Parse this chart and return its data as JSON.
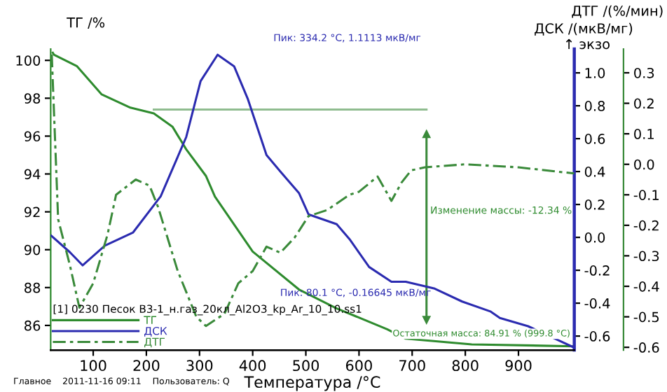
{
  "chart_data": {
    "type": "line",
    "xlabel": "Температура /°C",
    "ylabel": "ТГ /%",
    "y2label": "ДСК /(мкВ/мг)",
    "y3label": "ДТГ /(%/мин)",
    "legend_title": "[1] 0230 Песок В3-1_н.газ_20кл_Al2O3_kp_Ar_10_10.ss1",
    "legend": "bottom left",
    "grid": false,
    "xlim": [
      20,
      1005
    ],
    "xticks": [
      100,
      200,
      300,
      400,
      500,
      600,
      700,
      800,
      900
    ],
    "ylim": [
      84.7,
      100.6
    ],
    "yticks": [
      86,
      88,
      90,
      92,
      94,
      96,
      98,
      100
    ],
    "y2lim": [
      -0.685,
      1.145
    ],
    "y2ticks": [
      -0.6,
      -0.4,
      -0.2,
      {
        "value": 0,
        "label": "0.0"
      },
      0.2,
      0.4,
      0.6,
      0.8,
      {
        "value": 1.0,
        "label": "1.0"
      }
    ],
    "y3lim": [
      -0.609,
      0.378
    ],
    "y3ticks": [
      -0.6,
      -0.5,
      -0.4,
      -0.3,
      -0.2,
      -0.1,
      {
        "value": 0,
        "label": "0.0"
      },
      0.1,
      0.2,
      0.3
    ],
    "series": [
      {
        "name": "ТГ",
        "color": "#2e8b2e",
        "axis": "y",
        "line_style": "solid",
        "x": [
          24,
          26,
          69,
          116,
          170,
          214,
          249,
          275,
          312,
          329,
          400,
          487,
          558,
          653,
          688,
          812,
          1005
        ],
        "values": [
          100.4,
          100.3,
          99.7,
          98.2,
          97.5,
          97.2,
          96.5,
          95.3,
          93.9,
          92.8,
          89.9,
          87.9,
          86.9,
          85.8,
          85.3,
          85.0,
          84.9
        ]
      },
      {
        "name": "ДСК",
        "color": "#2b2bb0",
        "axis": "y2",
        "line_style": "solid",
        "x": [
          21,
          56,
          80,
          122,
          175,
          227,
          275,
          302,
          334,
          365,
          391,
          426,
          452,
          487,
          505,
          558,
          582,
          619,
          661,
          688,
          741,
          794,
          847,
          865,
          918,
          1005
        ],
        "values": [
          0.01,
          -0.09,
          -0.17,
          -0.05,
          0.03,
          0.25,
          0.61,
          0.95,
          1.11,
          1.04,
          0.84,
          0.5,
          0.4,
          0.27,
          0.14,
          0.08,
          -0.01,
          -0.18,
          -0.27,
          -0.27,
          -0.31,
          -0.39,
          -0.45,
          -0.49,
          -0.54,
          -0.67
        ]
      },
      {
        "name": "ДТГ",
        "color": "#3a8a3a",
        "axis": "y3",
        "line_style": "dashed",
        "x": [
          22,
          34,
          56,
          74,
          100,
          127,
          143,
          180,
          206,
          222,
          259,
          294,
          312,
          347,
          373,
          400,
          426,
          452,
          479,
          505,
          540,
          582,
          600,
          635,
          661,
          680,
          698,
          724,
          800,
          900,
          1005
        ],
        "values": [
          0.36,
          -0.18,
          -0.33,
          -0.47,
          -0.39,
          -0.23,
          -0.1,
          -0.05,
          -0.07,
          -0.14,
          -0.35,
          -0.5,
          -0.53,
          -0.49,
          -0.39,
          -0.35,
          -0.27,
          -0.29,
          -0.24,
          -0.17,
          -0.15,
          -0.1,
          -0.09,
          -0.04,
          -0.12,
          -0.06,
          -0.02,
          -0.01,
          0.0,
          -0.01,
          -0.03
        ]
      },
      {
        "color": "#8fbc8f",
        "axis": "y",
        "line_style": "solid",
        "x": [
          214,
          727
        ],
        "values": [
          97.4,
          97.4
        ]
      },
      {
        "color": "#3a8a3a",
        "axis": "y",
        "line_style": "solid",
        "marker": "triangle",
        "x": [
          727,
          727
        ],
        "values": [
          96.1,
          86.3
        ]
      }
    ],
    "annotations": [
      "Пик: 334.2 °C, 1.1113 мкВ/мг",
      "Пик: 80.1 °C, -0.16645 мкВ/мг",
      "Изменение массы: -12.34 %",
      "Остаточная масса: 84.91 % (999.8 °C)",
      "↑ экзо",
      "Главное    2011-11-16 09:11    Пользователь: Q"
    ]
  }
}
